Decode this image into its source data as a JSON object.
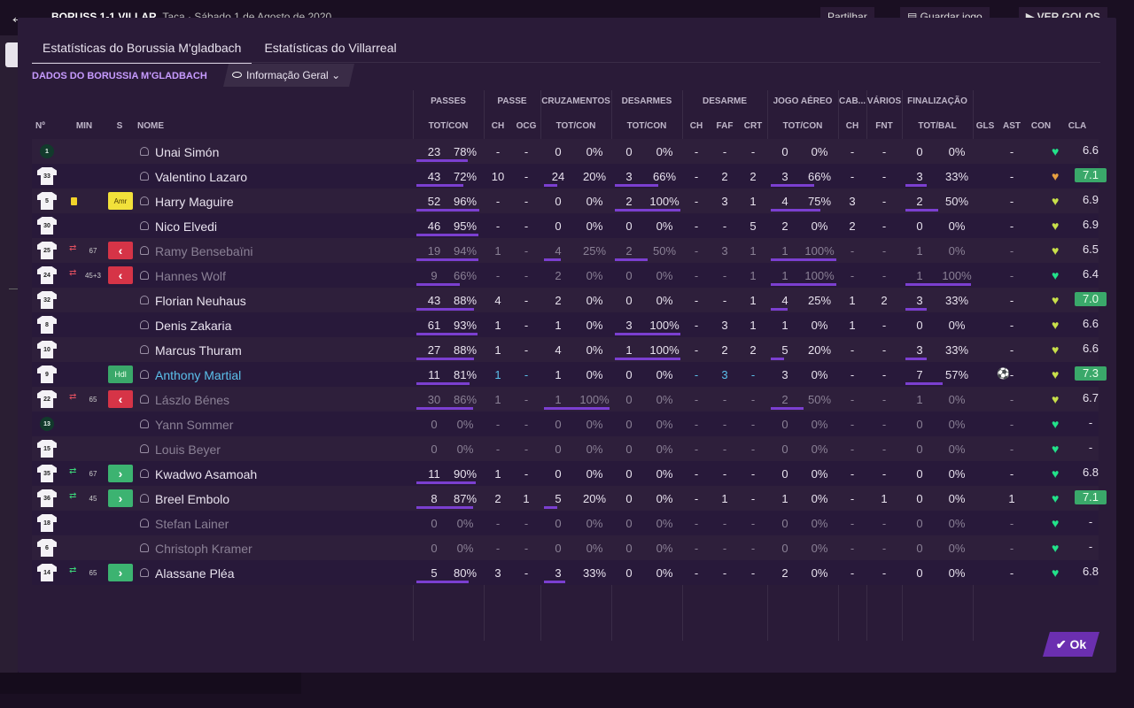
{
  "topbar": {
    "score": "BORUSS 1-1 VILLAR",
    "match_info": "Taça · Sábado 1 de Agosto de 2020",
    "share": "Partilhar",
    "save": "Guardar jogo",
    "goals": "VER GOLOS"
  },
  "tabs": [
    "Estatísticas do Borussia M'gladbach",
    "Estatísticas do Villarreal"
  ],
  "section_title": "DADOS DO BORUSSIA M'GLADBACH",
  "view_select": "Informação Geral",
  "groups": [
    "PASSES",
    "PASSE",
    "CRUZAMENTOS",
    "DESARMES",
    "DESARME",
    "JOGO AÉREO",
    "CAB...",
    "VÁRIOS",
    "FINALIZAÇÃO"
  ],
  "columns": [
    "Nº",
    "MIN",
    "S",
    "NOME",
    "TOT/CON",
    "CH",
    "OCG",
    "TOT/CON",
    "TOT/CON",
    "CH",
    "FAF",
    "CRT",
    "TOT/CON",
    "CH",
    "FNT",
    "TOT/BAL",
    "GLS",
    "AST",
    "CON",
    "CLA"
  ],
  "players": [
    {
      "no": "1",
      "gk": true,
      "name": "Unai Simón",
      "p": "23",
      "pp": "78%",
      "pch": "-",
      "ocg": "-",
      "cr": "0",
      "crp": "0%",
      "ds": "0",
      "dsp": "0%",
      "dch": "-",
      "faf": "-",
      "crt": "-",
      "ja": "0",
      "jap": "0%",
      "cab": "-",
      "fnt": "-",
      "fin": "0",
      "finp": "0%",
      "ast": "-",
      "con": "g",
      "rating": "6.6"
    },
    {
      "no": "33",
      "name": "Valentino Lazaro",
      "p": "43",
      "pp": "72%",
      "pch": "10",
      "ocg": "-",
      "cr": "24",
      "crp": "20%",
      "ds": "3",
      "dsp": "66%",
      "dch": "-",
      "faf": "2",
      "crt": "2",
      "ja": "3",
      "jap": "66%",
      "cab": "-",
      "fnt": "-",
      "fin": "3",
      "finp": "33%",
      "ast": "-",
      "con": "o",
      "rating": "7.1",
      "top": true
    },
    {
      "no": "5",
      "card": true,
      "badge": "amr",
      "badge_text": "Amr",
      "name": "Harry Maguire",
      "p": "52",
      "pp": "96%",
      "pch": "-",
      "ocg": "-",
      "cr": "0",
      "crp": "0%",
      "ds": "2",
      "dsp": "100%",
      "dch": "-",
      "faf": "3",
      "crt": "1",
      "ja": "4",
      "jap": "75%",
      "cab": "3",
      "fnt": "-",
      "fin": "2",
      "finp": "50%",
      "ast": "-",
      "con": "y",
      "rating": "6.9"
    },
    {
      "no": "30",
      "name": "Nico Elvedi",
      "p": "46",
      "pp": "95%",
      "pch": "-",
      "ocg": "-",
      "cr": "0",
      "crp": "0%",
      "ds": "0",
      "dsp": "0%",
      "dch": "-",
      "faf": "-",
      "crt": "5",
      "ja": "2",
      "jap": "0%",
      "cab": "2",
      "fnt": "-",
      "fin": "0",
      "finp": "0%",
      "ast": "-",
      "con": "y",
      "rating": "6.9"
    },
    {
      "no": "25",
      "dim": true,
      "subout": true,
      "min": "67",
      "badge": "sub",
      "badge_text": "‹",
      "name": "Ramy Bensebaïni",
      "p": "19",
      "pp": "94%",
      "pch": "1",
      "ocg": "-",
      "cr": "4",
      "crp": "25%",
      "ds": "2",
      "dsp": "50%",
      "dch": "-",
      "faf": "3",
      "crt": "1",
      "ja": "1",
      "jap": "100%",
      "cab": "-",
      "fnt": "-",
      "fin": "1",
      "finp": "0%",
      "ast": "-",
      "con": "y",
      "rating": "6.5"
    },
    {
      "no": "24",
      "dim": true,
      "subout": true,
      "min": "45+3",
      "badge": "sub",
      "badge_text": "‹",
      "name": "Hannes Wolf",
      "p": "9",
      "pp": "66%",
      "pch": "-",
      "ocg": "-",
      "cr": "2",
      "crp": "0%",
      "ds": "0",
      "dsp": "0%",
      "dch": "-",
      "faf": "-",
      "crt": "1",
      "ja": "1",
      "jap": "100%",
      "cab": "-",
      "fnt": "-",
      "fin": "1",
      "finp": "100%",
      "ast": "-",
      "con": "g",
      "rating": "6.4"
    },
    {
      "no": "32",
      "name": "Florian Neuhaus",
      "p": "43",
      "pp": "88%",
      "pch": "4",
      "ocg": "-",
      "cr": "2",
      "crp": "0%",
      "ds": "0",
      "dsp": "0%",
      "dch": "-",
      "faf": "-",
      "crt": "1",
      "ja": "4",
      "jap": "25%",
      "cab": "1",
      "fnt": "2",
      "fin": "3",
      "finp": "33%",
      "ast": "-",
      "con": "y",
      "rating": "7.0",
      "top": true
    },
    {
      "no": "8",
      "name": "Denis Zakaria",
      "p": "61",
      "pp": "93%",
      "pch": "1",
      "ocg": "-",
      "cr": "1",
      "crp": "0%",
      "ds": "3",
      "dsp": "100%",
      "dch": "-",
      "faf": "3",
      "crt": "1",
      "ja": "1",
      "jap": "0%",
      "cab": "1",
      "fnt": "-",
      "fin": "0",
      "finp": "0%",
      "ast": "-",
      "con": "y",
      "rating": "6.6"
    },
    {
      "no": "10",
      "name": "Marcus Thuram",
      "p": "27",
      "pp": "88%",
      "pch": "1",
      "ocg": "-",
      "cr": "4",
      "crp": "0%",
      "ds": "1",
      "dsp": "100%",
      "dch": "-",
      "faf": "2",
      "crt": "2",
      "ja": "5",
      "jap": "20%",
      "cab": "-",
      "fnt": "-",
      "fin": "3",
      "finp": "33%",
      "ast": "-",
      "con": "y",
      "rating": "6.6"
    },
    {
      "no": "9",
      "hl": true,
      "badge": "hdl",
      "badge_text": "Hdl",
      "name": "Anthony Martial",
      "p": "11",
      "pp": "81%",
      "pch": "1",
      "ocg": "-",
      "cr": "1",
      "crp": "0%",
      "ds": "0",
      "dsp": "0%",
      "dch": "-",
      "faf": "3",
      "crt": "-",
      "ja": "3",
      "jap": "0%",
      "cab": "-",
      "fnt": "-",
      "fin": "7",
      "finp": "57%",
      "goal": true,
      "ast": "-",
      "con": "y",
      "rating": "7.3",
      "top": true
    },
    {
      "no": "22",
      "dim": true,
      "subout": true,
      "min": "65",
      "badge": "sub",
      "badge_text": "‹",
      "name": "Lászlo Bénes",
      "p": "30",
      "pp": "86%",
      "pch": "1",
      "ocg": "-",
      "cr": "1",
      "crp": "100%",
      "ds": "0",
      "dsp": "0%",
      "dch": "-",
      "faf": "-",
      "crt": "-",
      "ja": "2",
      "jap": "50%",
      "cab": "-",
      "fnt": "-",
      "fin": "1",
      "finp": "0%",
      "ast": "-",
      "con": "y",
      "rating": "6.7"
    },
    {
      "no": "13",
      "gk": true,
      "dim": true,
      "name": "Yann Sommer",
      "p": "0",
      "pp": "0%",
      "pch": "-",
      "ocg": "-",
      "cr": "0",
      "crp": "0%",
      "ds": "0",
      "dsp": "0%",
      "dch": "-",
      "faf": "-",
      "crt": "-",
      "ja": "0",
      "jap": "0%",
      "cab": "-",
      "fnt": "-",
      "fin": "0",
      "finp": "0%",
      "ast": "-",
      "con": "g",
      "rating": "-"
    },
    {
      "no": "15",
      "dim": true,
      "name": "Louis Beyer",
      "p": "0",
      "pp": "0%",
      "pch": "-",
      "ocg": "-",
      "cr": "0",
      "crp": "0%",
      "ds": "0",
      "dsp": "0%",
      "dch": "-",
      "faf": "-",
      "crt": "-",
      "ja": "0",
      "jap": "0%",
      "cab": "-",
      "fnt": "-",
      "fin": "0",
      "finp": "0%",
      "ast": "-",
      "con": "g",
      "rating": "-"
    },
    {
      "no": "35",
      "subin": true,
      "min": "67",
      "badge": "in",
      "badge_text": "›",
      "name": "Kwadwo Asamoah",
      "p": "11",
      "pp": "90%",
      "pch": "1",
      "ocg": "-",
      "cr": "0",
      "crp": "0%",
      "ds": "0",
      "dsp": "0%",
      "dch": "-",
      "faf": "-",
      "crt": "-",
      "ja": "0",
      "jap": "0%",
      "cab": "-",
      "fnt": "-",
      "fin": "0",
      "finp": "0%",
      "ast": "-",
      "con": "g",
      "rating": "6.8"
    },
    {
      "no": "36",
      "subin": true,
      "min": "45",
      "badge": "in",
      "badge_text": "›",
      "name": "Breel Embolo",
      "p": "8",
      "pp": "87%",
      "pch": "2",
      "ocg": "1",
      "cr": "5",
      "crp": "20%",
      "ds": "0",
      "dsp": "0%",
      "dch": "-",
      "faf": "1",
      "crt": "-",
      "ja": "1",
      "jap": "0%",
      "cab": "-",
      "fnt": "1",
      "fin": "0",
      "finp": "0%",
      "ast": "1",
      "con": "g",
      "rating": "7.1",
      "top": true
    },
    {
      "no": "18",
      "dim": true,
      "name": "Stefan Lainer",
      "p": "0",
      "pp": "0%",
      "pch": "-",
      "ocg": "-",
      "cr": "0",
      "crp": "0%",
      "ds": "0",
      "dsp": "0%",
      "dch": "-",
      "faf": "-",
      "crt": "-",
      "ja": "0",
      "jap": "0%",
      "cab": "-",
      "fnt": "-",
      "fin": "0",
      "finp": "0%",
      "ast": "-",
      "con": "g",
      "rating": "-"
    },
    {
      "no": "6",
      "dim": true,
      "name": "Christoph Kramer",
      "p": "0",
      "pp": "0%",
      "pch": "-",
      "ocg": "-",
      "cr": "0",
      "crp": "0%",
      "ds": "0",
      "dsp": "0%",
      "dch": "-",
      "faf": "-",
      "crt": "-",
      "ja": "0",
      "jap": "0%",
      "cab": "-",
      "fnt": "-",
      "fin": "0",
      "finp": "0%",
      "ast": "-",
      "con": "g",
      "rating": "-"
    },
    {
      "no": "14",
      "subin": true,
      "min": "65",
      "badge": "in",
      "badge_text": "›",
      "name": "Alassane Pléa",
      "p": "5",
      "pp": "80%",
      "pch": "3",
      "ocg": "-",
      "cr": "3",
      "crp": "33%",
      "ds": "0",
      "dsp": "0%",
      "dch": "-",
      "faf": "-",
      "crt": "-",
      "ja": "2",
      "jap": "0%",
      "cab": "-",
      "fnt": "-",
      "fin": "0",
      "finp": "0%",
      "ast": "-",
      "con": "g",
      "rating": "6.8"
    }
  ],
  "ok_label": "Ok",
  "colors": {
    "accent": "#7b3fd0",
    "good": "#3aa86a",
    "bad": "#d63447",
    "con_green": "#22e28a",
    "con_yellow": "#c8e04a",
    "con_orange": "#e8a040"
  }
}
